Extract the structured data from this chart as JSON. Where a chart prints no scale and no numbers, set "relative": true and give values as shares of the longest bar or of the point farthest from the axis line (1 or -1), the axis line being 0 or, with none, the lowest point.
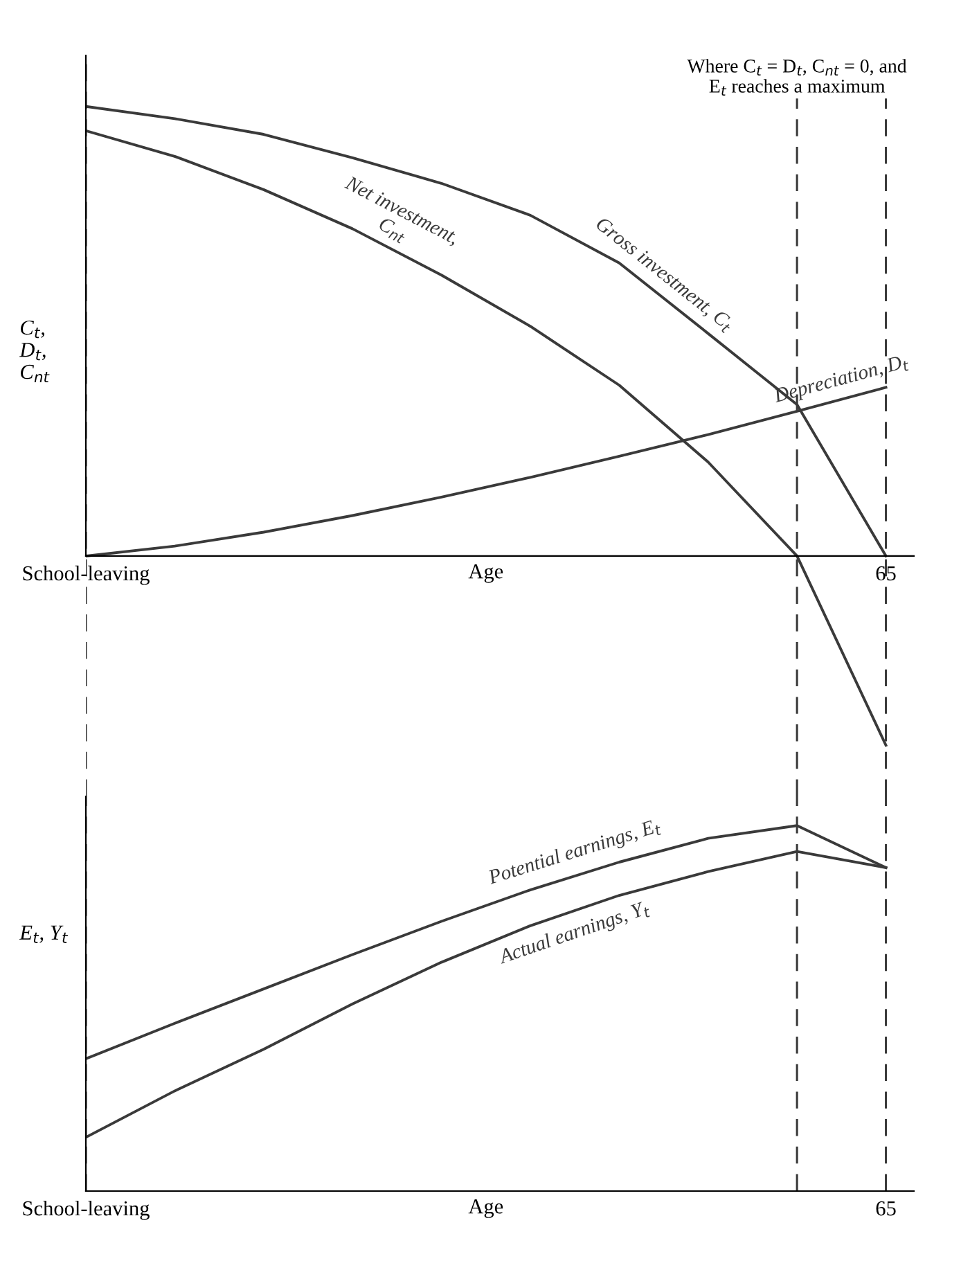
{
  "chart_data": [
    {
      "type": "line",
      "relative": true,
      "ylabel": "C$_{t}$,\nD$_{t}$,\nC$_{nt}$",
      "xlabel": "Age",
      "tick_labels": "x",
      "grid": "x",
      "line_style": "solid",
      "legend": false,
      "categories": [
        "School-leaving",
        null,
        null,
        null,
        null,
        null,
        null,
        null,
        null,
        "65"
      ],
      "series": [
        {
          "name": "Gross investment, C$_{t}$",
          "color": "#3a3a3a",
          "values": [
            1,
            0.973,
            0.938,
            0.886,
            0.829,
            0.758,
            0.652,
            0.495,
            0.337,
            0
          ]
        },
        {
          "name": "Net investment,\nC$_{nt}$",
          "color": "#3a3a3a",
          "values": [
            0.946,
            0.889,
            0.815,
            0.728,
            0.625,
            0.511,
            0.38,
            0.209,
            0,
            -0.421
          ]
        },
        {
          "name": "Depreciation, D$_{t}$",
          "color": "#3a3a3a",
          "values": [
            0,
            0.022,
            0.053,
            0.09,
            0.131,
            0.175,
            0.222,
            0.27,
            0.322,
            0.375
          ]
        }
      ],
      "annotations": [
        "Where C$_{t}$ = D$_{t}$, C$_{nt}$ = 0, and\nE$_{t}$ reaches a maximum"
      ]
    },
    {
      "type": "line",
      "relative": true,
      "ylabel": "E$_{t}$, Y$_{t}$",
      "xlabel": "Age",
      "tick_labels": "x",
      "grid": "x",
      "line_style": "solid",
      "legend": false,
      "categories": [
        "School-leaving",
        null,
        null,
        null,
        null,
        null,
        null,
        null,
        null,
        "65"
      ],
      "series": [
        {
          "name": "Potential earnings, E$_{t}$",
          "color": "#3a3a3a",
          "values": [
            0.362,
            0.459,
            0.553,
            0.647,
            0.738,
            0.824,
            0.9,
            0.965,
            1,
            0.885
          ]
        },
        {
          "name": "Actual earnings, Y$_{t}$",
          "color": "#3a3a3a",
          "values": [
            0.147,
            0.274,
            0.388,
            0.512,
            0.626,
            0.726,
            0.809,
            0.874,
            0.929,
            0.885
          ]
        }
      ]
    }
  ]
}
